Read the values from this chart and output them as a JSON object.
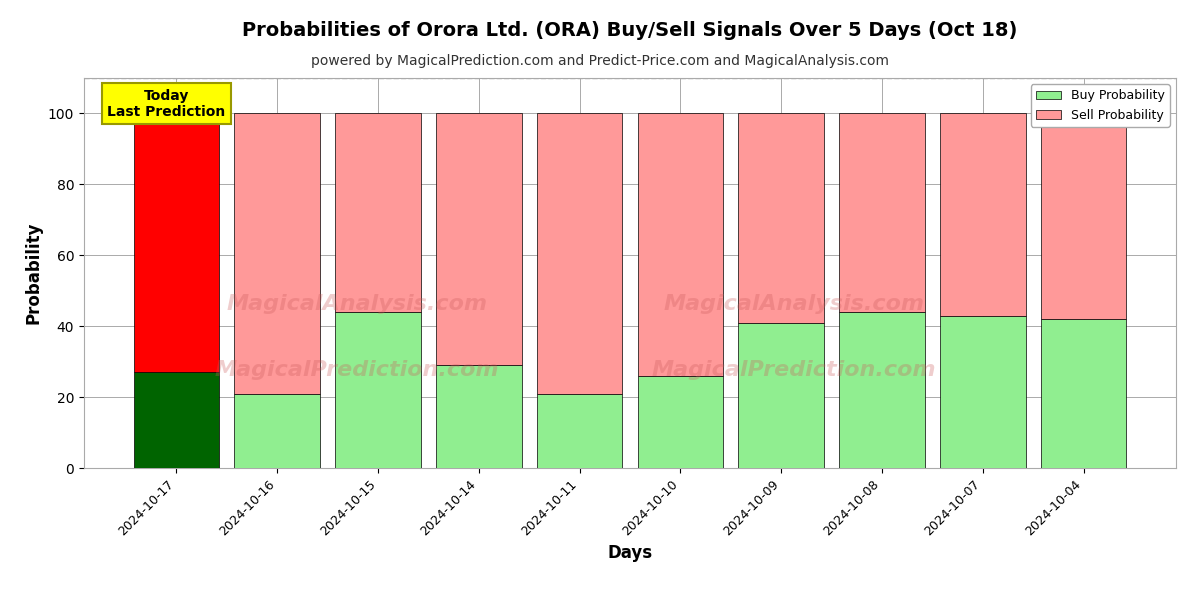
{
  "title": "Probabilities of Orora Ltd. (ORA) Buy/Sell Signals Over 5 Days (Oct 18)",
  "subtitle": "powered by MagicalPrediction.com and Predict-Price.com and MagicalAnalysis.com",
  "xlabel": "Days",
  "ylabel": "Probability",
  "categories": [
    "2024-10-17",
    "2024-10-16",
    "2024-10-15",
    "2024-10-14",
    "2024-10-11",
    "2024-10-10",
    "2024-10-09",
    "2024-10-08",
    "2024-10-07",
    "2024-10-04"
  ],
  "buy_values": [
    27,
    21,
    44,
    29,
    21,
    26,
    41,
    44,
    43,
    42
  ],
  "sell_values": [
    73,
    79,
    56,
    71,
    79,
    74,
    59,
    56,
    57,
    58
  ],
  "buy_colors": [
    "#006400",
    "#90EE90",
    "#90EE90",
    "#90EE90",
    "#90EE90",
    "#90EE90",
    "#90EE90",
    "#90EE90",
    "#90EE90",
    "#90EE90"
  ],
  "sell_colors": [
    "#FF0000",
    "#FF9999",
    "#FF9999",
    "#FF9999",
    "#FF9999",
    "#FF9999",
    "#FF9999",
    "#FF9999",
    "#FF9999",
    "#FF9999"
  ],
  "today_label": "Today\nLast Prediction",
  "today_bg": "#FFFF00",
  "legend_buy_color": "#90EE90",
  "legend_sell_color": "#FF9999",
  "legend_buy_label": "Buy Probability",
  "legend_sell_label": "Sell Probability",
  "ylim": [
    0,
    110
  ],
  "dashed_line_y": 110,
  "bar_edgecolor": "#000000",
  "bar_edgewidth": 0.5,
  "grid_color": "#aaaaaa",
  "background_color": "#ffffff",
  "title_fontsize": 14,
  "subtitle_fontsize": 10,
  "label_fontsize": 12,
  "tick_fontsize": 9,
  "bar_width": 0.85
}
